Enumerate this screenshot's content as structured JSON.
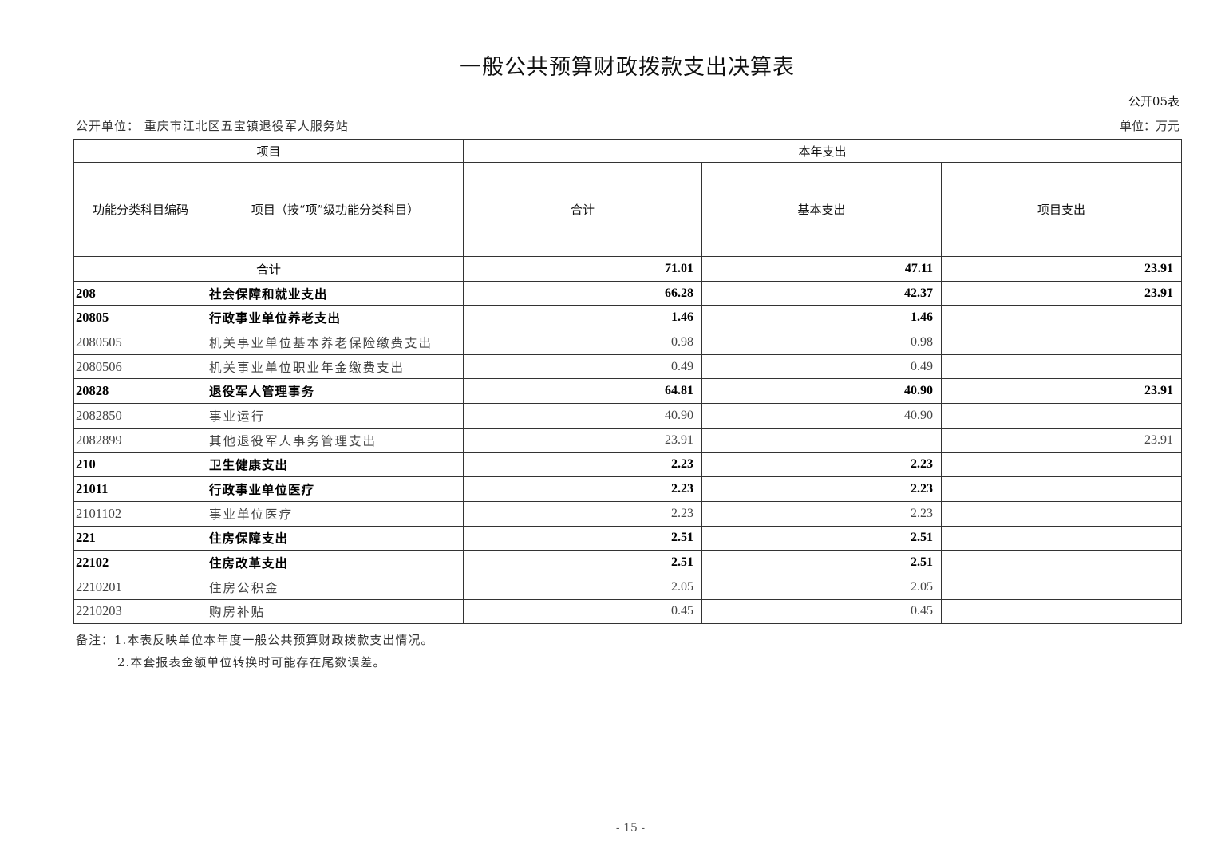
{
  "title": "一般公共预算财政拨款支出决算表",
  "form_no": "公开05表",
  "unit_label": "公开单位：  重庆市江北区五宝镇退役军人服务站",
  "currency_unit": "单位：万元",
  "table": {
    "header_group_item": "项目",
    "header_group_spend": "本年支出",
    "col_code": "功能分类科目编码",
    "col_name": "项目（按“项”级功能分类科目）",
    "col_total": "合计",
    "col_basic": "基本支出",
    "col_project": "项目支出",
    "total_row": {
      "label": "合计",
      "total": "71.01",
      "basic": "47.11",
      "project": "23.91"
    },
    "rows": [
      {
        "code": "208",
        "name": "社会保障和就业支出",
        "total": "66.28",
        "basic": "42.37",
        "project": "23.91",
        "bold": true
      },
      {
        "code": "20805",
        "name": "行政事业单位养老支出",
        "total": "1.46",
        "basic": "1.46",
        "project": "",
        "bold": true
      },
      {
        "code": "2080505",
        "name": "机关事业单位基本养老保险缴费支出",
        "total": "0.98",
        "basic": "0.98",
        "project": "",
        "bold": false
      },
      {
        "code": "2080506",
        "name": "机关事业单位职业年金缴费支出",
        "total": "0.49",
        "basic": "0.49",
        "project": "",
        "bold": false
      },
      {
        "code": "20828",
        "name": "退役军人管理事务",
        "total": "64.81",
        "basic": "40.90",
        "project": "23.91",
        "bold": true
      },
      {
        "code": "2082850",
        "name": "事业运行",
        "total": "40.90",
        "basic": "40.90",
        "project": "",
        "bold": false
      },
      {
        "code": "2082899",
        "name": "其他退役军人事务管理支出",
        "total": "23.91",
        "basic": "",
        "project": "23.91",
        "bold": false
      },
      {
        "code": "210",
        "name": "卫生健康支出",
        "total": "2.23",
        "basic": "2.23",
        "project": "",
        "bold": true
      },
      {
        "code": "21011",
        "name": "行政事业单位医疗",
        "total": "2.23",
        "basic": "2.23",
        "project": "",
        "bold": true
      },
      {
        "code": "2101102",
        "name": "事业单位医疗",
        "total": "2.23",
        "basic": "2.23",
        "project": "",
        "bold": false
      },
      {
        "code": "221",
        "name": "住房保障支出",
        "total": "2.51",
        "basic": "2.51",
        "project": "",
        "bold": true
      },
      {
        "code": "22102",
        "name": "住房改革支出",
        "total": "2.51",
        "basic": "2.51",
        "project": "",
        "bold": true
      },
      {
        "code": "2210201",
        "name": "住房公积金",
        "total": "2.05",
        "basic": "2.05",
        "project": "",
        "bold": false
      },
      {
        "code": "2210203",
        "name": "购房补贴",
        "total": "0.45",
        "basic": "0.45",
        "project": "",
        "bold": false
      }
    ]
  },
  "notes": [
    "备注：1.本表反映单位本年度一般公共预算财政拨款支出情况。",
    "2.本套报表金额单位转换时可能存在尾数误差。"
  ],
  "page_number": "- 15 -"
}
